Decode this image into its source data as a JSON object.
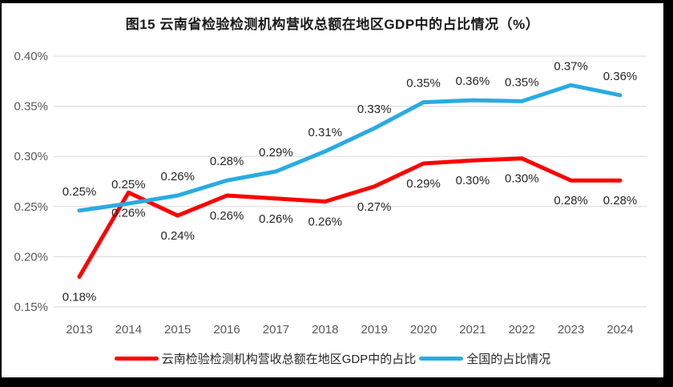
{
  "chart_data": {
    "type": "line",
    "title": "图15 云南省检验检测机构营收总额在地区GDP中的占比情况（%）",
    "categories": [
      "2013",
      "2014",
      "2015",
      "2016",
      "2017",
      "2018",
      "2019",
      "2020",
      "2021",
      "2022",
      "2023",
      "2024"
    ],
    "y_ticks": [
      "0.40%",
      "0.35%",
      "0.30%",
      "0.25%",
      "0.20%",
      "0.15%"
    ],
    "ylim": [
      0.15,
      0.4
    ],
    "y_tick_step": 0.05,
    "grid": true,
    "legend_position": "bottom",
    "series": [
      {
        "name": "云南检验检测机构营收总额在地区GDP中的占比",
        "color": "#FE0000",
        "label_position": "below",
        "labels": [
          "0.18%",
          "0.26%",
          "0.24%",
          "0.26%",
          "0.26%",
          "0.26%",
          "0.27%",
          "0.29%",
          "0.30%",
          "0.30%",
          "0.28%",
          "0.28%"
        ],
        "values": [
          0.18,
          0.264,
          0.241,
          0.261,
          0.258,
          0.255,
          0.27,
          0.293,
          0.296,
          0.298,
          0.276,
          0.276
        ]
      },
      {
        "name": "全国的占比情况",
        "color": "#29ABE2",
        "label_position": "above",
        "labels": [
          "0.25%",
          "0.25%",
          "0.26%",
          "0.28%",
          "0.29%",
          "0.31%",
          "0.33%",
          "0.35%",
          "0.36%",
          "0.35%",
          "0.37%",
          "0.36%"
        ],
        "values": [
          0.246,
          0.253,
          0.261,
          0.276,
          0.285,
          0.305,
          0.328,
          0.354,
          0.356,
          0.355,
          0.371,
          0.361
        ]
      }
    ],
    "colors": {
      "gridline": "#D9D9D9",
      "axis_text": "#595959",
      "data_label_text": "#262626",
      "title_text": "#1a1a1a"
    }
  }
}
